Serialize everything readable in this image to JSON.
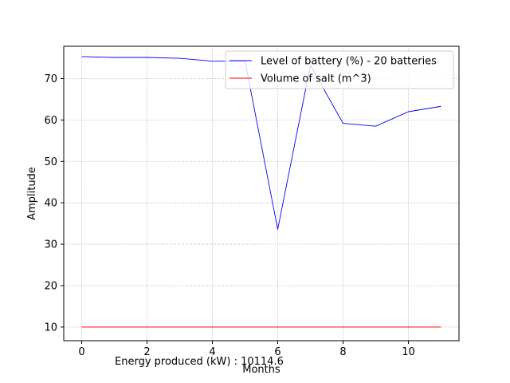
{
  "chart_data": {
    "type": "line",
    "xlabel": "Months",
    "ylabel": "Amplitude",
    "xlim": [
      -0.55,
      11.55
    ],
    "ylim": [
      6.7,
      77.8
    ],
    "xticks": [
      0,
      2,
      4,
      6,
      8,
      10
    ],
    "yticks": [
      10,
      20,
      30,
      40,
      50,
      60,
      70
    ],
    "grid": true,
    "legend_position": "top-right",
    "series": [
      {
        "name": "Level of battery (%) - 20 batteries",
        "color": "#0000ff",
        "x": [
          0,
          1,
          2,
          3,
          4,
          5,
          6,
          7,
          8,
          9,
          10,
          11
        ],
        "y": [
          75.3,
          75.1,
          75.1,
          74.9,
          74.2,
          74.2,
          33.6,
          73.2,
          59.2,
          58.5,
          62.0,
          63.3
        ]
      },
      {
        "name": "Volume of salt (m^3)",
        "color": "#ff0000",
        "x": [
          0,
          1,
          2,
          3,
          4,
          5,
          6,
          7,
          8,
          9,
          10,
          11
        ],
        "y": [
          10,
          10,
          10,
          10,
          10,
          10,
          10,
          10,
          10,
          10,
          10,
          10
        ]
      }
    ],
    "footer_text": "Energy produced (kW) : 10114.6"
  }
}
